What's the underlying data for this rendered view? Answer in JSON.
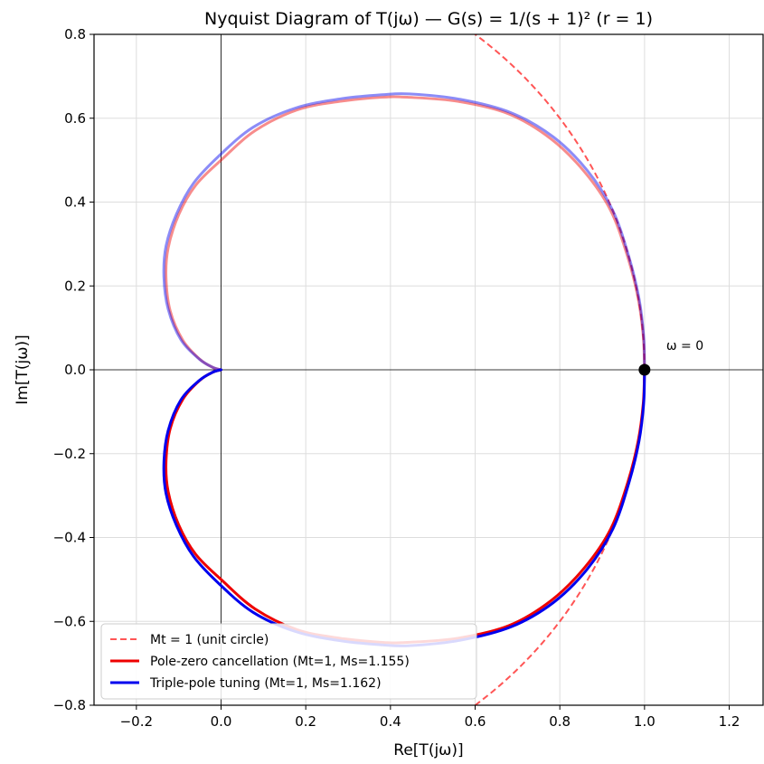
{
  "chart_data": {
    "type": "line",
    "title": "Nyquist Diagram of T(jω) — G(s) = 1/(s + 1)² (r = 1)",
    "xlabel": "Re[T(jω)]",
    "ylabel": "Im[T(jω)]",
    "xlim": [
      -0.3,
      1.28
    ],
    "ylim": [
      -0.8,
      0.8
    ],
    "x_ticks": [
      -0.2,
      0.0,
      0.2,
      0.4,
      0.6,
      0.8,
      1.0,
      1.2
    ],
    "x_tick_labels": [
      "−0.2",
      "0.0",
      "0.2",
      "0.4",
      "0.6",
      "0.8",
      "1.0",
      "1.2"
    ],
    "y_ticks": [
      -0.8,
      -0.6,
      -0.4,
      -0.2,
      0.0,
      0.2,
      0.4,
      0.6,
      0.8
    ],
    "y_tick_labels": [
      "−0.8",
      "−0.6",
      "−0.4",
      "−0.2",
      "0.0",
      "0.2",
      "0.4",
      "0.6",
      "0.8"
    ],
    "grid": true,
    "legend_position": "lower-left",
    "series": [
      {
        "name": "Mt = 1 (unit circle)",
        "color": "#ff5555",
        "style": "dashed",
        "shape": "circle",
        "center": [
          0,
          0
        ],
        "radius": 1.0
      },
      {
        "name": "Pole-zero cancellation (Mt=1, Ms=1.155)",
        "color": "#ee0000",
        "style": "solid",
        "shape": "curve",
        "mirror_alpha": 0.45,
        "points": [
          [
            1.0,
            0.0
          ],
          [
            0.997,
            -0.08
          ],
          [
            0.985,
            -0.17
          ],
          [
            0.96,
            -0.27
          ],
          [
            0.92,
            -0.38
          ],
          [
            0.86,
            -0.47
          ],
          [
            0.78,
            -0.55
          ],
          [
            0.68,
            -0.61
          ],
          [
            0.56,
            -0.64
          ],
          [
            0.44,
            -0.65
          ],
          [
            0.38,
            -0.65
          ],
          [
            0.28,
            -0.64
          ],
          [
            0.18,
            -0.62
          ],
          [
            0.08,
            -0.57
          ],
          [
            0.0,
            -0.5
          ],
          [
            -0.06,
            -0.44
          ],
          [
            -0.1,
            -0.37
          ],
          [
            -0.125,
            -0.29
          ],
          [
            -0.13,
            -0.22
          ],
          [
            -0.12,
            -0.14
          ],
          [
            -0.09,
            -0.07
          ],
          [
            -0.05,
            -0.025
          ],
          [
            -0.02,
            -0.006
          ],
          [
            0.0,
            0.0
          ]
        ]
      },
      {
        "name": "Triple-pole tuning (Mt=1, Ms=1.162)",
        "color": "#0000ee",
        "style": "solid",
        "shape": "curve",
        "mirror_alpha": 0.45,
        "points": [
          [
            1.0,
            0.0
          ],
          [
            0.998,
            -0.08
          ],
          [
            0.987,
            -0.17
          ],
          [
            0.963,
            -0.27
          ],
          [
            0.925,
            -0.38
          ],
          [
            0.865,
            -0.475
          ],
          [
            0.785,
            -0.555
          ],
          [
            0.685,
            -0.613
          ],
          [
            0.565,
            -0.645
          ],
          [
            0.445,
            -0.658
          ],
          [
            0.38,
            -0.656
          ],
          [
            0.28,
            -0.646
          ],
          [
            0.175,
            -0.624
          ],
          [
            0.075,
            -0.578
          ],
          [
            -0.005,
            -0.51
          ],
          [
            -0.065,
            -0.445
          ],
          [
            -0.105,
            -0.372
          ],
          [
            -0.13,
            -0.295
          ],
          [
            -0.135,
            -0.222
          ],
          [
            -0.125,
            -0.145
          ],
          [
            -0.095,
            -0.072
          ],
          [
            -0.052,
            -0.026
          ],
          [
            -0.02,
            -0.006
          ],
          [
            0.0,
            0.0
          ]
        ]
      }
    ],
    "annotations": [
      {
        "text": "ω = 0",
        "x": 1.0,
        "y": 0.0,
        "marker_color": "#000000"
      }
    ]
  }
}
